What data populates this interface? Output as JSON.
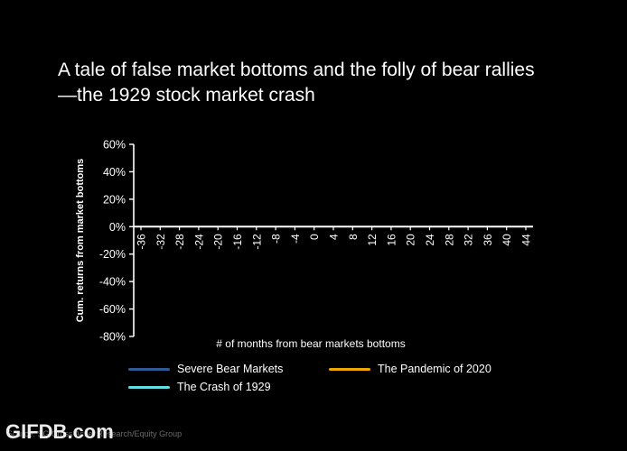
{
  "title_lines": [
    "A tale of false market bottoms and the folly of bear rallies",
    "—the 1929 stock market crash"
  ],
  "chart_data": {
    "type": "line",
    "ylabel": "Cum. returns from market bottoms",
    "xlabel": "# of months from bear markets bottoms",
    "y_ticks": [
      "60%",
      "40%",
      "20%",
      "0%",
      "-20%",
      "-40%",
      "-60%",
      "-80%"
    ],
    "y_tick_values": [
      60,
      40,
      20,
      0,
      -20,
      -40,
      -60,
      -80
    ],
    "ylim": [
      -80,
      60
    ],
    "x_ticks": [
      "-36",
      "-32",
      "-28",
      "-24",
      "-20",
      "-16",
      "-12",
      "-8",
      "-4",
      "0",
      "4",
      "8",
      "12",
      "16",
      "20",
      "24",
      "28",
      "32",
      "36",
      "40",
      "44"
    ],
    "x_tick_values": [
      -36,
      -32,
      -28,
      -24,
      -20,
      -16,
      -12,
      -8,
      -4,
      0,
      4,
      8,
      12,
      16,
      20,
      24,
      28,
      32,
      36,
      40,
      44
    ],
    "xlim": [
      -38,
      46
    ],
    "grid": false,
    "series": [
      {
        "name": "Severe Bear Markets",
        "color": "#2f5b96",
        "values": []
      },
      {
        "name": "The Pandemic of 2020",
        "color": "#f0a500",
        "values": []
      },
      {
        "name": "The Crash of 1929",
        "color": "#5ee0e6",
        "values": []
      }
    ]
  },
  "source": "Source: SG Cross Asset Research/Equity Group",
  "watermark": "GIFDB.com"
}
